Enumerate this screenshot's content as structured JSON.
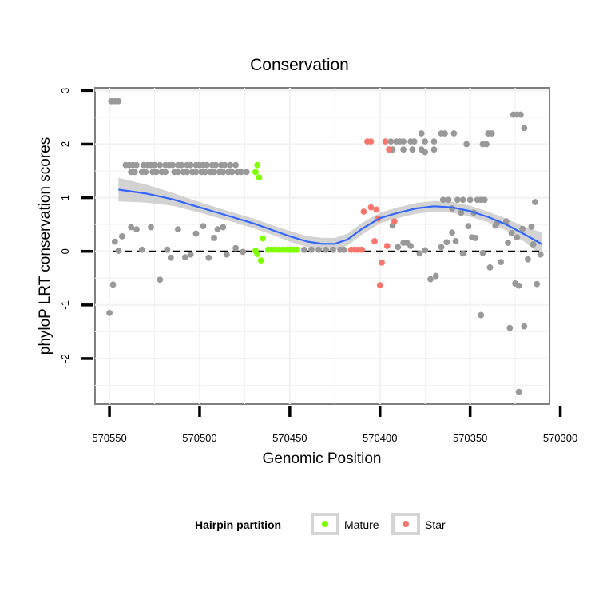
{
  "chart_data": {
    "type": "scatter",
    "title": "Conservation",
    "xlabel": "Genomic Position",
    "ylabel": "phyloP LRT conservation scores",
    "x_reversed": true,
    "xlim": [
      570558,
      570306
    ],
    "ylim": [
      -2.85,
      3.05
    ],
    "x_ticks": [
      570550,
      570500,
      570450,
      570400,
      570350,
      570300
    ],
    "y_ticks": [
      3,
      2,
      1,
      0,
      -1,
      -2
    ],
    "reference_line": {
      "y": 0,
      "style": "dashed"
    },
    "legend": {
      "title": "Hairpin partition",
      "entries": [
        {
          "label": "Mature",
          "color": "#7fff00"
        },
        {
          "label": "Star",
          "color": "#f8766d"
        }
      ]
    },
    "colors": {
      "other": "#999999",
      "Mature": "#7fff00",
      "Star": "#f8766d",
      "smooth": "#3366ff",
      "ribbon": "#c8c8c8"
    },
    "smooth": {
      "x": [
        570545,
        570530,
        570515,
        570500,
        570485,
        570470,
        570460,
        570450,
        570440,
        570432,
        570425,
        570418,
        570410,
        570400,
        570390,
        570380,
        570370,
        570360,
        570350,
        570340,
        570330,
        570320,
        570310
      ],
      "y": [
        1.15,
        1.08,
        0.97,
        0.82,
        0.67,
        0.52,
        0.4,
        0.28,
        0.18,
        0.14,
        0.14,
        0.22,
        0.42,
        0.62,
        0.72,
        0.8,
        0.84,
        0.82,
        0.75,
        0.64,
        0.5,
        0.32,
        0.13
      ],
      "se": [
        0.22,
        0.17,
        0.12,
        0.1,
        0.09,
        0.09,
        0.09,
        0.1,
        0.1,
        0.11,
        0.11,
        0.11,
        0.11,
        0.1,
        0.1,
        0.1,
        0.1,
        0.1,
        0.1,
        0.1,
        0.11,
        0.14,
        0.22
      ]
    },
    "series": [
      {
        "name": "Other",
        "points": [
          [
            570550,
            -1.15
          ],
          [
            570548,
            -0.62
          ],
          [
            570547,
            0.18
          ],
          [
            570545,
            0.01
          ],
          [
            570543,
            0.28
          ],
          [
            570538,
            0.45
          ],
          [
            570535,
            0.41
          ],
          [
            570532,
            0.03
          ],
          [
            570527,
            0.45
          ],
          [
            570522,
            -0.53
          ],
          [
            570518,
            0.03
          ],
          [
            570516,
            -0.12
          ],
          [
            570512,
            0.41
          ],
          [
            570508,
            -0.11
          ],
          [
            570505,
            -0.06
          ],
          [
            570502,
            0.33
          ],
          [
            570498,
            0.47
          ],
          [
            570495,
            -0.12
          ],
          [
            570492,
            0.25
          ],
          [
            570490,
            0.41
          ],
          [
            570487,
            0.45
          ],
          [
            570485,
            -0.06
          ],
          [
            570480,
            0.06
          ],
          [
            570476,
            -0.01
          ],
          [
            570549,
            2.8
          ],
          [
            570547,
            2.8
          ],
          [
            570545,
            2.8
          ],
          [
            570541,
            1.61
          ],
          [
            570539,
            1.61
          ],
          [
            570537,
            1.61
          ],
          [
            570535,
            1.61
          ],
          [
            570531,
            1.61
          ],
          [
            570529,
            1.61
          ],
          [
            570527,
            1.61
          ],
          [
            570525,
            1.61
          ],
          [
            570522,
            1.61
          ],
          [
            570519,
            1.61
          ],
          [
            570517,
            1.61
          ],
          [
            570515,
            1.61
          ],
          [
            570512,
            1.61
          ],
          [
            570510,
            1.61
          ],
          [
            570507,
            1.61
          ],
          [
            570505,
            1.61
          ],
          [
            570502,
            1.61
          ],
          [
            570500,
            1.61
          ],
          [
            570498,
            1.61
          ],
          [
            570496,
            1.61
          ],
          [
            570493,
            1.61
          ],
          [
            570491,
            1.61
          ],
          [
            570488,
            1.61
          ],
          [
            570486,
            1.61
          ],
          [
            570483,
            1.61
          ],
          [
            570480,
            1.61
          ],
          [
            570538,
            1.48
          ],
          [
            570536,
            1.48
          ],
          [
            570532,
            1.48
          ],
          [
            570530,
            1.48
          ],
          [
            570526,
            1.48
          ],
          [
            570524,
            1.48
          ],
          [
            570521,
            1.48
          ],
          [
            570519,
            1.48
          ],
          [
            570514,
            1.48
          ],
          [
            570512,
            1.48
          ],
          [
            570509,
            1.48
          ],
          [
            570507,
            1.48
          ],
          [
            570504,
            1.48
          ],
          [
            570502,
            1.48
          ],
          [
            570499,
            1.48
          ],
          [
            570497,
            1.48
          ],
          [
            570494,
            1.48
          ],
          [
            570492,
            1.48
          ],
          [
            570489,
            1.48
          ],
          [
            570487,
            1.48
          ],
          [
            570484,
            1.48
          ],
          [
            570482,
            1.48
          ],
          [
            570479,
            1.48
          ],
          [
            570477,
            1.48
          ],
          [
            570474,
            1.48
          ],
          [
            570442,
            0.03
          ],
          [
            570438,
            0.03
          ],
          [
            570434,
            0.03
          ],
          [
            570430,
            0.03
          ],
          [
            570426,
            0.03
          ],
          [
            570422,
            0.03
          ],
          [
            570420,
            0.03
          ],
          [
            570394,
            2.05
          ],
          [
            570391,
            2.05
          ],
          [
            570389,
            2.05
          ],
          [
            570387,
            2.05
          ],
          [
            570383,
            2.05
          ],
          [
            570381,
            2.05
          ],
          [
            570377,
            2.2
          ],
          [
            570375,
            2.05
          ],
          [
            570370,
            2.05
          ],
          [
            570366,
            2.2
          ],
          [
            570364,
            2.2
          ],
          [
            570359,
            2.2
          ],
          [
            570352,
            2.0
          ],
          [
            570343,
            2.0
          ],
          [
            570341,
            2.0
          ],
          [
            570340,
            2.2
          ],
          [
            570338,
            2.2
          ],
          [
            570393,
            1.9
          ],
          [
            570387,
            1.9
          ],
          [
            570382,
            1.9
          ],
          [
            570377,
            1.9
          ],
          [
            570375,
            1.85
          ],
          [
            570370,
            1.9
          ],
          [
            570326,
            2.55
          ],
          [
            570324,
            2.55
          ],
          [
            570322,
            2.55
          ],
          [
            570320,
            2.3
          ],
          [
            570365,
            0.96
          ],
          [
            570362,
            0.96
          ],
          [
            570357,
            0.96
          ],
          [
            570354,
            0.96
          ],
          [
            570350,
            0.96
          ],
          [
            570346,
            0.96
          ],
          [
            570344,
            0.96
          ],
          [
            570342,
            0.96
          ],
          [
            570360,
            0.8
          ],
          [
            570355,
            0.72
          ],
          [
            570348,
            0.72
          ],
          [
            570330,
            0.56
          ],
          [
            570336,
            0.48
          ],
          [
            570327,
            0.34
          ],
          [
            570324,
            0.26
          ],
          [
            570316,
            0.46
          ],
          [
            570314,
            0.92
          ],
          [
            570393,
            0.48
          ],
          [
            570390,
            0.08
          ],
          [
            570387,
            0.16
          ],
          [
            570385,
            0.16
          ],
          [
            570383,
            0.1
          ],
          [
            570378,
            -0.04
          ],
          [
            570375,
            0.02
          ],
          [
            570372,
            -0.52
          ],
          [
            570369,
            -0.46
          ],
          [
            570366,
            0.08
          ],
          [
            570363,
            0.17
          ],
          [
            570360,
            0.35
          ],
          [
            570358,
            0.19
          ],
          [
            570354,
            -0.04
          ],
          [
            570351,
            0.47
          ],
          [
            570349,
            0.26
          ],
          [
            570347,
            0.25
          ],
          [
            570343,
            -0.03
          ],
          [
            570344,
            -1.19
          ],
          [
            570339,
            -0.3
          ],
          [
            570335,
            0.53
          ],
          [
            570333,
            -0.2
          ],
          [
            570329,
            0.16
          ],
          [
            570328,
            -1.43
          ],
          [
            570325,
            -0.6
          ],
          [
            570323,
            -0.64
          ],
          [
            570320,
            -1.4
          ],
          [
            570318,
            -0.15
          ],
          [
            570321,
            0.42
          ],
          [
            570315,
            0.13
          ],
          [
            570313,
            -0.61
          ],
          [
            570311,
            -0.06
          ],
          [
            570323,
            -2.62
          ]
        ]
      },
      {
        "name": "Mature",
        "points": [
          [
            570469,
            1.48
          ],
          [
            570468,
            1.61
          ],
          [
            570467,
            1.38
          ],
          [
            570465,
            0.24
          ],
          [
            570469,
            0.01
          ],
          [
            570468,
            -0.05
          ],
          [
            570466,
            -0.17
          ],
          [
            570462,
            0.03
          ],
          [
            570460,
            0.03
          ],
          [
            570458,
            0.03
          ],
          [
            570456,
            0.03
          ],
          [
            570454,
            0.03
          ],
          [
            570452,
            0.03
          ],
          [
            570450,
            0.03
          ],
          [
            570448,
            0.03
          ],
          [
            570446,
            0.03
          ]
        ]
      },
      {
        "name": "Star",
        "points": [
          [
            570407,
            2.05
          ],
          [
            570405,
            2.05
          ],
          [
            570397,
            2.05
          ],
          [
            570395,
            1.9
          ],
          [
            570409,
            0.74
          ],
          [
            570405,
            0.82
          ],
          [
            570402,
            0.78
          ],
          [
            570401,
            0.61
          ],
          [
            570396,
            0.1
          ],
          [
            570392,
            0.56
          ],
          [
            570403,
            0.19
          ],
          [
            570399,
            -0.21
          ],
          [
            570400,
            -0.63
          ],
          [
            570416,
            0.03
          ],
          [
            570414,
            0.03
          ],
          [
            570412,
            0.03
          ],
          [
            570410,
            0.03
          ]
        ]
      }
    ]
  }
}
